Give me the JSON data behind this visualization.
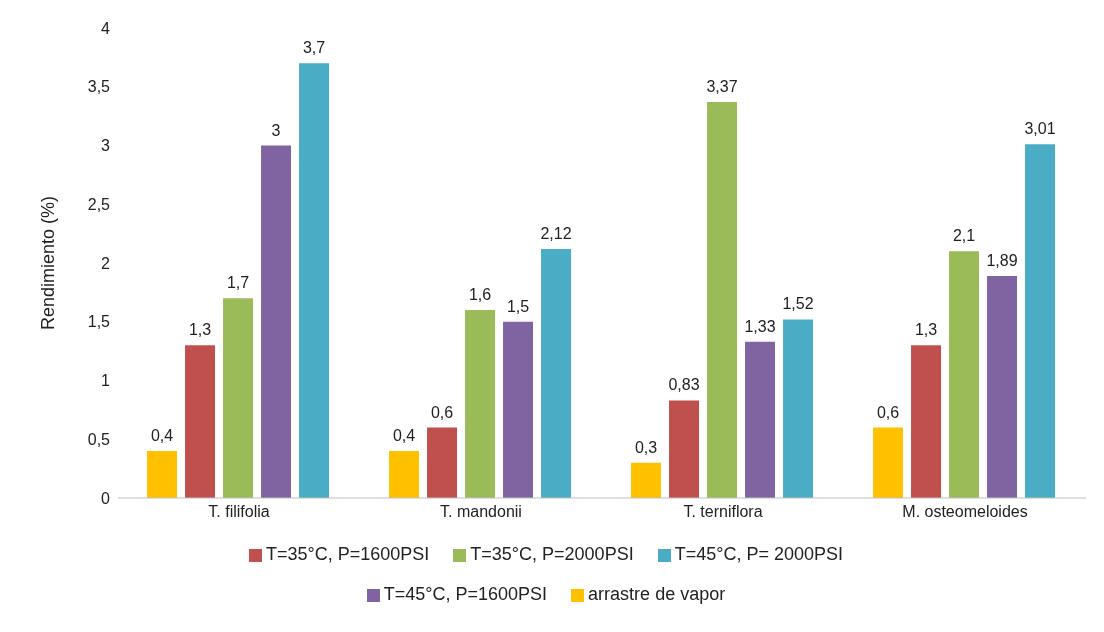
{
  "chart_data": {
    "type": "bar",
    "ylabel": "Rendimiento (%)",
    "categories": [
      "T. filifolia",
      "T. mandonii",
      "T. terniflora",
      "M. osteomeloides"
    ],
    "series": [
      {
        "name": "arrastre de vapor",
        "color": "#ffc000",
        "values": [
          0.4,
          0.4,
          0.3,
          0.6
        ],
        "value_labels": [
          "0,4",
          "0,4",
          "0,3",
          "0,6"
        ]
      },
      {
        "name": "T=35°C, P=1600PSI",
        "color": "#c0504d",
        "values": [
          1.3,
          0.6,
          0.83,
          1.3
        ],
        "value_labels": [
          "1,3",
          "0,6",
          "0,83",
          "1,3"
        ]
      },
      {
        "name": "T=35°C, P=2000PSI",
        "color": "#9bbb59",
        "values": [
          1.7,
          1.6,
          3.37,
          2.1
        ],
        "value_labels": [
          "1,7",
          "1,6",
          "3,37",
          "2,1"
        ]
      },
      {
        "name": "T=45°C, P=1600PSI",
        "color": "#8064a2",
        "values": [
          3,
          1.5,
          1.33,
          1.89
        ],
        "value_labels": [
          "3",
          "1,5",
          "1,33",
          "1,89"
        ]
      },
      {
        "name": "T=45°C, P= 2000PSI",
        "color": "#4bacc6",
        "values": [
          3.7,
          2.12,
          1.52,
          3.01
        ],
        "value_labels": [
          "3,7",
          "2,12",
          "1,52",
          "3,01"
        ]
      }
    ],
    "ylim": [
      0,
      4
    ],
    "yticks": [
      0,
      {
        "value": 0.5,
        "label": "0,5"
      },
      1,
      {
        "value": 1.5,
        "label": "1,5"
      },
      2,
      {
        "value": 2.5,
        "label": "2,5"
      },
      3,
      {
        "value": 3.5,
        "label": "3,5"
      },
      4
    ],
    "grid": false,
    "legend": "bottom"
  }
}
